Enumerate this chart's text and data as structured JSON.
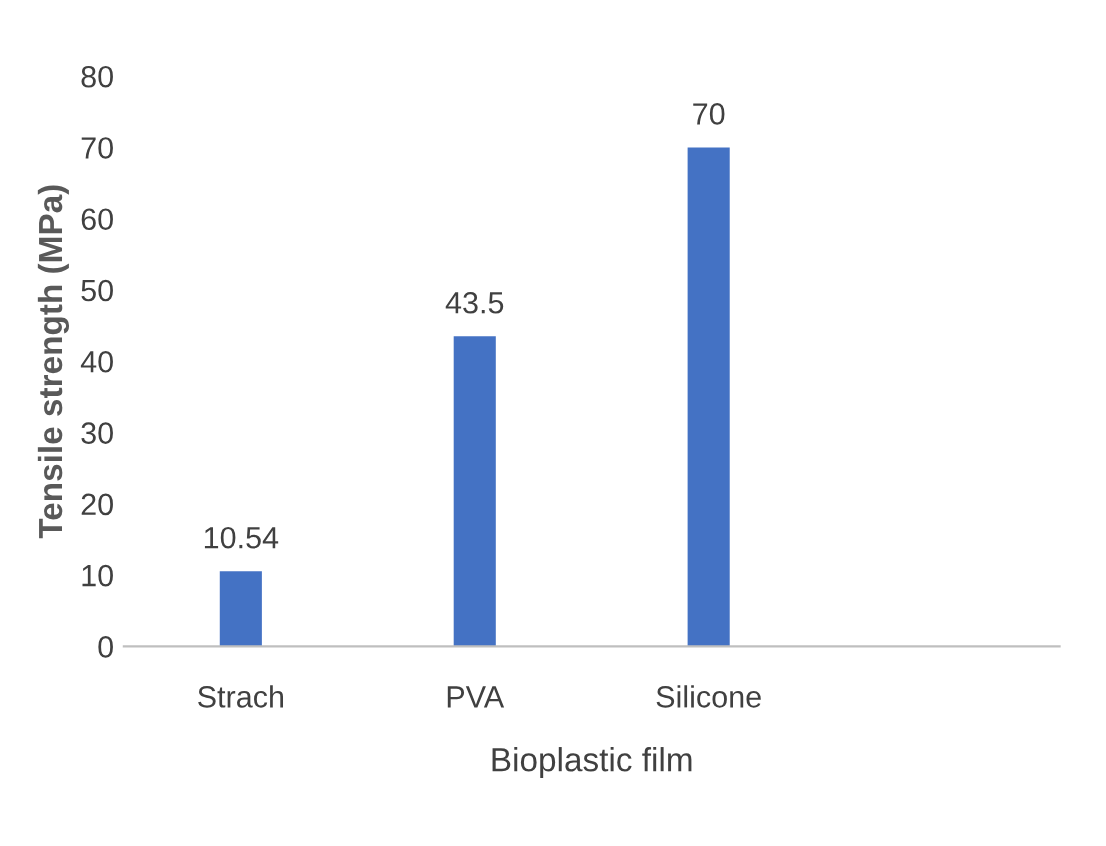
{
  "chart_data": {
    "type": "bar",
    "xlabel": "Bioplastic film",
    "ylabel": "Tensile strength (MPa)",
    "categories": [
      "Strach",
      "PVA",
      "Silicone",
      null
    ],
    "values": [
      10.54,
      43.5,
      70,
      null
    ],
    "color": "#4472c4",
    "ylim": [
      0,
      80
    ],
    "yticks": [
      0,
      10,
      20,
      30,
      40,
      50,
      60,
      70,
      80
    ],
    "grid": false,
    "data_labels": true
  }
}
